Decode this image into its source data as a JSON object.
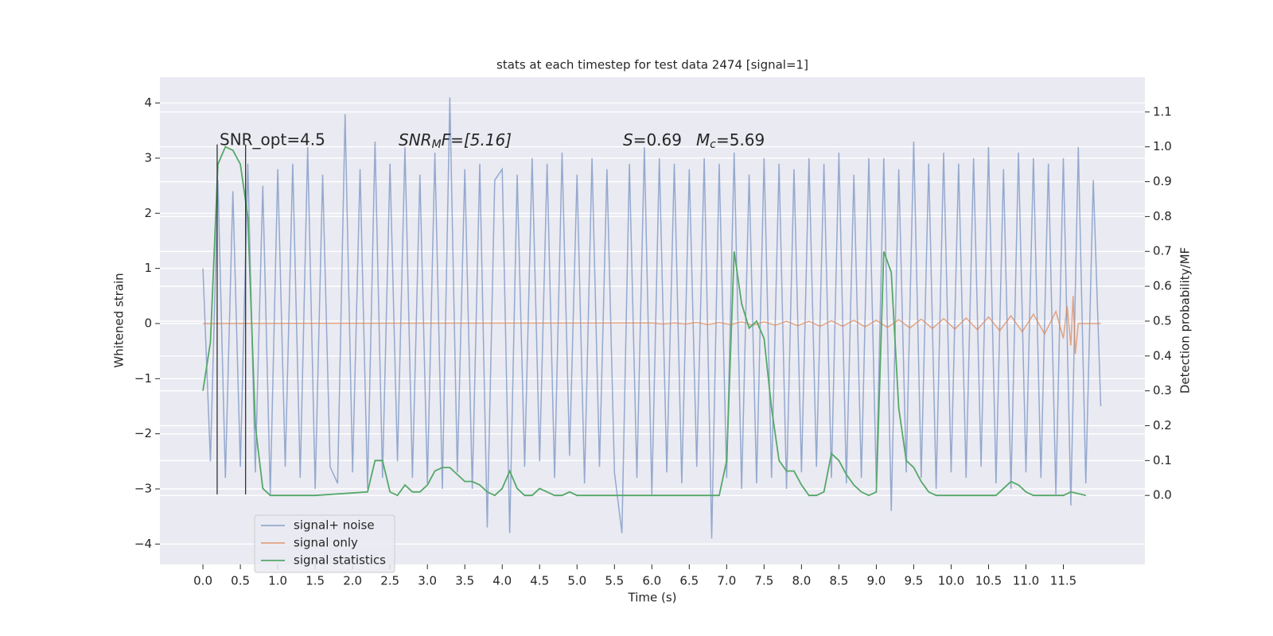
{
  "chart_data": {
    "type": "line",
    "title": "stats at each timestep for test data 2474 [signal=1]",
    "xlabel": "Time (s)",
    "ylabel": "Whitened strain",
    "y2label": "Detection probability/MF",
    "annotations": [
      "SNR_opt=4.5",
      "SNR",
      "M",
      "F=[5.16]",
      "S",
      "=0.69",
      "M",
      "c",
      "=5.69"
    ],
    "xlim": [
      -0.575,
      12.59
    ],
    "xticks": [
      {
        "value": 0,
        "label": "0.0"
      },
      {
        "value": 0.5,
        "label": "0.5"
      },
      {
        "value": 1,
        "label": "1.0"
      },
      {
        "value": 1.5,
        "label": "1.5"
      },
      {
        "value": 2,
        "label": "2.0"
      },
      {
        "value": 2.5,
        "label": "2.5"
      },
      {
        "value": 3,
        "label": "3.0"
      },
      {
        "value": 3.5,
        "label": "3.5"
      },
      {
        "value": 4,
        "label": "4.0"
      },
      {
        "value": 4.5,
        "label": "4.5"
      },
      {
        "value": 5,
        "label": "5.0"
      },
      {
        "value": 5.5,
        "label": "5.5"
      },
      {
        "value": 6,
        "label": "6.0"
      },
      {
        "value": 6.5,
        "label": "6.5"
      },
      {
        "value": 7,
        "label": "7.0"
      },
      {
        "value": 7.5,
        "label": "7.5"
      },
      {
        "value": 8,
        "label": "8.0"
      },
      {
        "value": 8.5,
        "label": "8.5"
      },
      {
        "value": 9,
        "label": "9.0"
      },
      {
        "value": 9.5,
        "label": "9.5"
      },
      {
        "value": 10,
        "label": "10.0"
      },
      {
        "value": 10.5,
        "label": "10.5"
      },
      {
        "value": 11,
        "label": "11.0"
      },
      {
        "value": 11.5,
        "label": "11.5"
      }
    ],
    "ylim": [
      -4.37,
      4.47
    ],
    "yticks": [
      {
        "value": -4,
        "label": "−4"
      },
      {
        "value": -3,
        "label": "−3"
      },
      {
        "value": -2,
        "label": "−2"
      },
      {
        "value": -1,
        "label": "−1"
      },
      0,
      1,
      2,
      3,
      4
    ],
    "y2lim": [
      -0.198,
      1.2
    ],
    "y2ticks": [
      {
        "value": 0,
        "label": "0.0"
      },
      {
        "value": 0.1,
        "label": "0.1"
      },
      {
        "value": 0.2,
        "label": "0.2"
      },
      {
        "value": 0.3,
        "label": "0.3"
      },
      {
        "value": 0.4,
        "label": "0.4"
      },
      {
        "value": 0.5,
        "label": "0.5"
      },
      {
        "value": 0.6,
        "label": "0.6"
      },
      {
        "value": 0.7,
        "label": "0.7"
      },
      {
        "value": 0.8,
        "label": "0.8"
      },
      {
        "value": 0.9,
        "label": "0.9"
      },
      {
        "value": 1,
        "label": "1.0"
      },
      {
        "value": 1.1,
        "label": "1.1"
      }
    ],
    "grid": true,
    "legend": "lower left",
    "vlines": [
      0.19,
      0.57
    ],
    "vline_range": [
      -3.1,
      3.25
    ],
    "vline_color": "#333333",
    "series": [
      {
        "name": "signal+ noise",
        "color": "#4c72b0",
        "alpha": 0.55,
        "x": [
          0,
          0.1,
          0.2,
          0.3,
          0.4,
          0.5,
          0.6,
          0.7,
          0.8,
          0.9,
          1,
          1.1,
          1.2,
          1.3,
          1.4,
          1.5,
          1.6,
          1.7,
          1.8,
          1.9,
          2,
          2.1,
          2.2,
          2.3,
          2.4,
          2.5,
          2.6,
          2.7,
          2.8,
          2.9,
          3,
          3.1,
          3.2,
          3.3,
          3.4,
          3.5,
          3.6,
          3.7,
          3.8,
          3.9,
          4,
          4.1,
          4.2,
          4.3,
          4.4,
          4.5,
          4.6,
          4.7,
          4.8,
          4.9,
          5,
          5.1,
          5.2,
          5.3,
          5.4,
          5.5,
          5.6,
          5.7,
          5.8,
          5.9,
          6,
          6.1,
          6.2,
          6.3,
          6.4,
          6.5,
          6.6,
          6.7,
          6.8,
          6.9,
          7,
          7.1,
          7.2,
          7.3,
          7.4,
          7.5,
          7.6,
          7.7,
          7.8,
          7.9,
          8,
          8.1,
          8.2,
          8.3,
          8.4,
          8.5,
          8.6,
          8.7,
          8.8,
          8.9,
          9,
          9.1,
          9.2,
          9.3,
          9.4,
          9.5,
          9.6,
          9.7,
          9.8,
          9.9,
          10,
          10.1,
          10.2,
          10.3,
          10.4,
          10.5,
          10.6,
          10.7,
          10.8,
          10.9,
          11,
          11.1,
          11.2,
          11.3,
          11.4,
          11.5,
          11.6,
          11.7,
          11.8,
          11.9,
          12
        ],
        "values": [
          1.0,
          -2.5,
          2.6,
          -2.8,
          2.4,
          -2.6,
          2.9,
          -2.7,
          2.5,
          -3.1,
          2.8,
          -2.6,
          2.9,
          -2.8,
          3.2,
          -3.0,
          2.7,
          -2.6,
          -2.9,
          3.8,
          -2.7,
          2.8,
          -3.0,
          3.3,
          -2.8,
          2.9,
          -2.5,
          3.2,
          -2.8,
          2.7,
          -2.9,
          3.1,
          -3.0,
          4.1,
          -2.7,
          2.8,
          -3.0,
          2.9,
          -3.7,
          2.6,
          2.8,
          -3.8,
          2.7,
          -2.6,
          3.0,
          -2.5,
          2.9,
          -2.8,
          3.1,
          -2.4,
          2.7,
          -2.9,
          3.0,
          -2.6,
          2.8,
          -2.7,
          -3.8,
          2.9,
          -2.8,
          3.2,
          -3.1,
          3.0,
          -2.7,
          2.9,
          -2.9,
          2.8,
          -2.6,
          3.0,
          -3.9,
          2.9,
          -2.8,
          3.1,
          -3.0,
          2.7,
          -2.9,
          3.0,
          -2.8,
          2.9,
          -3.0,
          2.8,
          -2.7,
          3.0,
          -2.6,
          2.9,
          -2.8,
          3.1,
          -2.9,
          2.7,
          -2.8,
          3.0,
          -2.9,
          3.0,
          -3.4,
          2.8,
          -2.7,
          3.3,
          -2.8,
          2.9,
          -3.0,
          3.1,
          -2.7,
          2.9,
          -2.8,
          3.0,
          -2.6,
          3.2,
          -2.9,
          2.8,
          -3.0,
          3.1,
          -2.7,
          3.0,
          -2.8,
          2.9,
          -3.1,
          3.0,
          -3.3,
          3.2,
          -2.9,
          2.6,
          -1.5
        ]
      },
      {
        "name": "signal only",
        "color": "#dd8452",
        "alpha": 0.7,
        "x": [
          0,
          6,
          6.15,
          6.3,
          6.45,
          6.6,
          6.75,
          6.9,
          7.05,
          7.2,
          7.35,
          7.5,
          7.65,
          7.8,
          7.95,
          8.1,
          8.25,
          8.4,
          8.55,
          8.7,
          8.85,
          9,
          9.15,
          9.3,
          9.45,
          9.6,
          9.75,
          9.9,
          10.05,
          10.2,
          10.35,
          10.5,
          10.65,
          10.8,
          10.95,
          11.1,
          11.25,
          11.4,
          11.5,
          11.55,
          11.6,
          11.63,
          11.66,
          11.7,
          12
        ],
        "values": [
          0,
          0.01,
          -0.01,
          0.01,
          -0.01,
          0.02,
          -0.02,
          0.02,
          -0.02,
          0.03,
          -0.03,
          0.03,
          -0.03,
          0.04,
          -0.04,
          0.04,
          -0.05,
          0.05,
          -0.05,
          0.06,
          -0.06,
          0.06,
          -0.07,
          0.07,
          -0.08,
          0.08,
          -0.09,
          0.09,
          -0.1,
          0.1,
          -0.11,
          0.12,
          -0.13,
          0.14,
          -0.15,
          0.17,
          -0.19,
          0.22,
          -0.27,
          0.32,
          -0.4,
          0.5,
          -0.55,
          0,
          0
        ]
      },
      {
        "name": "signal statistics",
        "color": "#55a868",
        "alpha": 1,
        "axis": "y2",
        "x": [
          0,
          0.1,
          0.2,
          0.3,
          0.4,
          0.5,
          0.6,
          0.7,
          0.8,
          0.9,
          1.5,
          2.2,
          2.3,
          2.4,
          2.5,
          2.6,
          2.7,
          2.8,
          2.9,
          3,
          3.1,
          3.2,
          3.3,
          3.4,
          3.5,
          3.6,
          3.7,
          3.8,
          3.9,
          4,
          4.1,
          4.2,
          4.3,
          4.4,
          4.5,
          4.6,
          4.7,
          4.8,
          4.9,
          5,
          6.9,
          7,
          7.1,
          7.2,
          7.3,
          7.4,
          7.5,
          7.6,
          7.7,
          7.8,
          7.9,
          8,
          8.1,
          8.2,
          8.3,
          8.4,
          8.5,
          8.6,
          8.7,
          8.8,
          8.9,
          9,
          9.1,
          9.2,
          9.3,
          9.4,
          9.5,
          9.6,
          9.7,
          9.8,
          10.6,
          10.7,
          10.8,
          10.9,
          11,
          11.1,
          11.5,
          11.6,
          11.8
        ],
        "values": [
          0.3,
          0.44,
          0.95,
          1.0,
          0.99,
          0.95,
          0.8,
          0.2,
          0.02,
          0.0,
          0.0,
          0.01,
          0.1,
          0.1,
          0.01,
          0.0,
          0.03,
          0.01,
          0.01,
          0.03,
          0.07,
          0.08,
          0.08,
          0.06,
          0.04,
          0.04,
          0.03,
          0.01,
          0.0,
          0.02,
          0.07,
          0.02,
          0.0,
          0.0,
          0.02,
          0.01,
          0.0,
          0.0,
          0.01,
          0.0,
          0.0,
          0.1,
          0.7,
          0.55,
          0.48,
          0.5,
          0.45,
          0.25,
          0.1,
          0.07,
          0.07,
          0.03,
          0.0,
          0.0,
          0.01,
          0.12,
          0.1,
          0.06,
          0.03,
          0.01,
          0.0,
          0.01,
          0.7,
          0.64,
          0.25,
          0.1,
          0.08,
          0.04,
          0.01,
          0.0,
          0.0,
          0.02,
          0.04,
          0.03,
          0.01,
          0.0,
          0.0,
          0.01,
          0.0
        ]
      }
    ]
  }
}
